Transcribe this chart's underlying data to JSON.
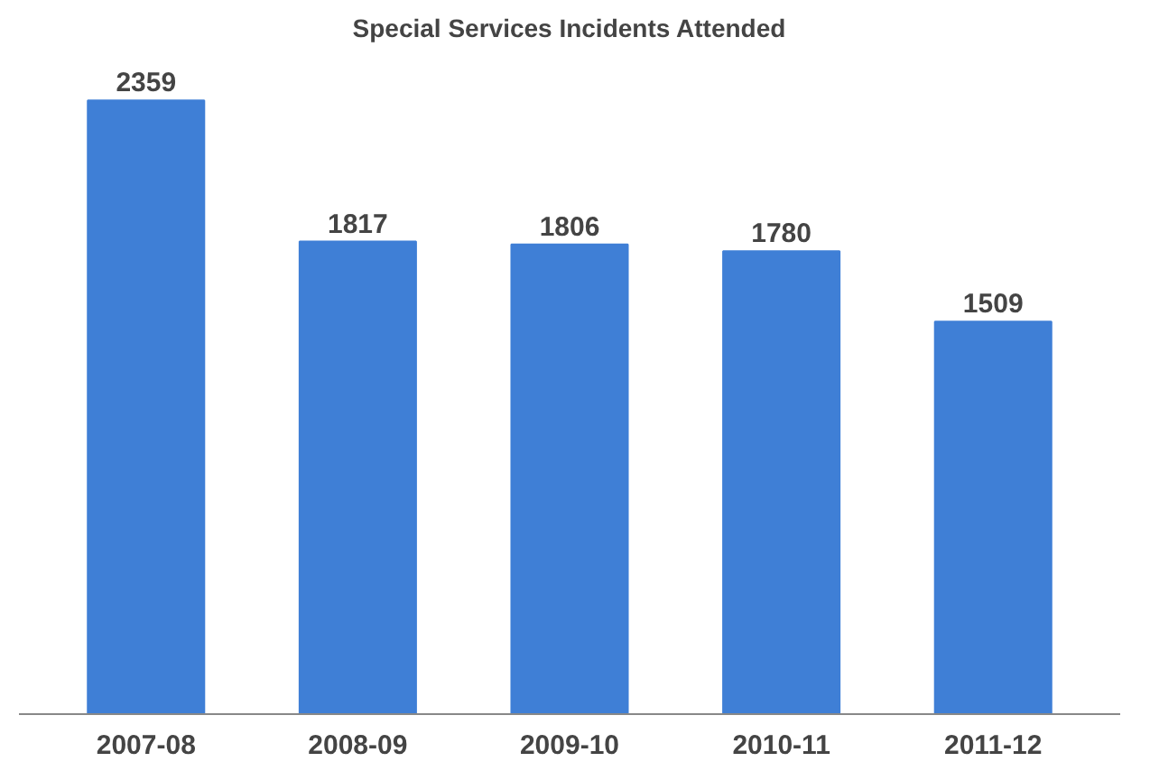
{
  "chart_data": {
    "type": "bar",
    "title": "Special Services Incidents Attended",
    "categories": [
      "2007-08",
      "2008-09",
      "2009-10",
      "2010-11",
      "2011-12"
    ],
    "values": [
      2359,
      1817,
      1806,
      1780,
      1509
    ],
    "color": "#3f7fd6",
    "data_labels": true,
    "grid": false
  }
}
